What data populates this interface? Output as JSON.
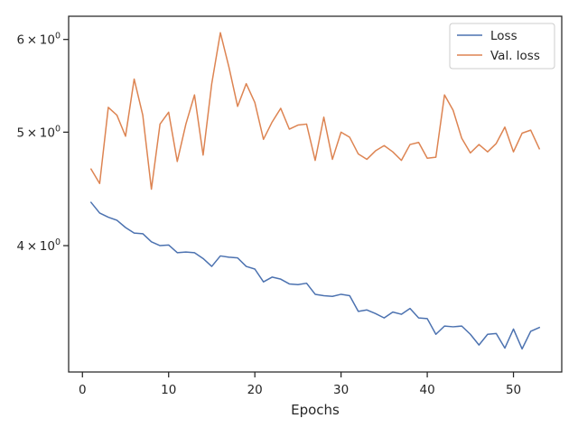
{
  "chart_data": {
    "type": "line",
    "title": "",
    "xlabel": "Epochs",
    "ylabel": "",
    "x_scale": "linear",
    "y_scale": "log",
    "xlim": [
      -1.6,
      55.6
    ],
    "ylim": [
      3.12,
      6.28
    ],
    "x_ticks": [
      0,
      10,
      20,
      30,
      40,
      50
    ],
    "x_tick_labels": [
      "0",
      "10",
      "20",
      "30",
      "40",
      "50"
    ],
    "y_ticks": [
      4,
      5,
      6
    ],
    "y_tick_labels": [
      {
        "base": "4",
        "times": "×",
        "exp_base": "10",
        "exp": "0"
      },
      {
        "base": "5",
        "times": "×",
        "exp_base": "10",
        "exp": "0"
      },
      {
        "base": "6",
        "times": "×",
        "exp_base": "10",
        "exp": "0"
      }
    ],
    "grid": false,
    "legend_position": "top-right",
    "x": [
      1,
      2,
      3,
      4,
      5,
      6,
      7,
      8,
      9,
      10,
      11,
      12,
      13,
      14,
      15,
      16,
      17,
      18,
      19,
      20,
      21,
      22,
      23,
      24,
      25,
      26,
      27,
      28,
      29,
      30,
      31,
      32,
      33,
      34,
      35,
      36,
      37,
      38,
      39,
      40,
      41,
      42,
      43,
      44,
      45,
      46,
      47,
      48,
      49,
      50,
      51,
      52,
      53
    ],
    "series": [
      {
        "name": "Loss",
        "color": "#4c72b0",
        "values": [
          4.355,
          4.265,
          4.23,
          4.205,
          4.145,
          4.1,
          4.095,
          4.03,
          4.0,
          4.005,
          3.945,
          3.95,
          3.945,
          3.9,
          3.84,
          3.92,
          3.91,
          3.905,
          3.84,
          3.82,
          3.725,
          3.76,
          3.745,
          3.71,
          3.705,
          3.715,
          3.635,
          3.625,
          3.62,
          3.635,
          3.625,
          3.515,
          3.525,
          3.5,
          3.47,
          3.51,
          3.495,
          3.535,
          3.47,
          3.465,
          3.36,
          3.415,
          3.41,
          3.415,
          3.36,
          3.29,
          3.36,
          3.365,
          3.27,
          3.395,
          3.265,
          3.38,
          3.405
        ]
      },
      {
        "name": "Val. loss",
        "color": "#dd8452",
        "values": [
          4.65,
          4.52,
          5.25,
          5.17,
          4.96,
          5.55,
          5.17,
          4.47,
          5.08,
          5.2,
          4.72,
          5.08,
          5.38,
          4.78,
          5.5,
          6.08,
          5.68,
          5.26,
          5.5,
          5.3,
          4.93,
          5.1,
          5.24,
          5.03,
          5.07,
          5.08,
          4.73,
          5.15,
          4.74,
          5.0,
          4.95,
          4.79,
          4.74,
          4.82,
          4.87,
          4.81,
          4.73,
          4.88,
          4.9,
          4.75,
          4.76,
          5.38,
          5.22,
          4.94,
          4.8,
          4.88,
          4.81,
          4.89,
          5.05,
          4.81,
          4.99,
          5.02,
          4.84
        ]
      }
    ]
  }
}
